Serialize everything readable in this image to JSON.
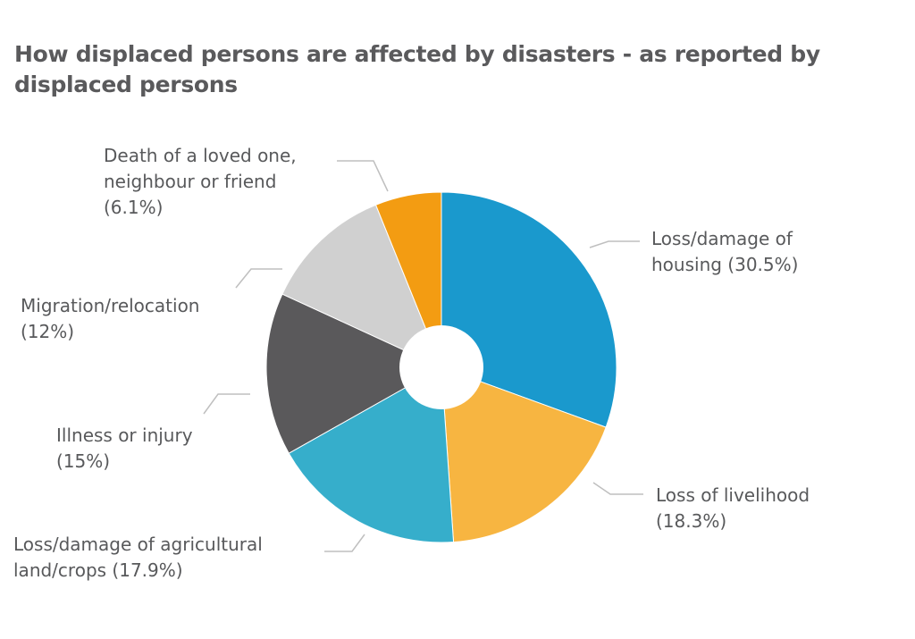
{
  "title": "How displaced persons are affected by disasters - as reported by displaced persons",
  "labels": {
    "housing": [
      "Loss/damage of",
      "housing (30.5%)"
    ],
    "livelihood": [
      "Loss of livelihood",
      "(18.3%)"
    ],
    "agricultural": [
      "Loss/damage of agricultural",
      "land/crops (17.9%)"
    ],
    "illness": [
      "Illness or injury",
      "(15%)"
    ],
    "migration": [
      "Migration/relocation",
      "(12%)"
    ],
    "death": [
      "Death of a loved one,",
      "neighbour or friend",
      "(6.1%)"
    ]
  },
  "chart_data": {
    "type": "pie",
    "title": "How displaced persons are affected by disasters - as reported by displaced persons",
    "donut": true,
    "slices": [
      {
        "label": "Loss/damage of housing",
        "value": 30.5,
        "color": "#1a99cd"
      },
      {
        "label": "Loss of livelihood",
        "value": 18.3,
        "color": "#f7b541"
      },
      {
        "label": "Loss/damage of agricultural land/crops",
        "value": 17.9,
        "color": "#36aecb"
      },
      {
        "label": "Illness or injury",
        "value": 15,
        "color": "#5a595b"
      },
      {
        "label": "Migration/relocation",
        "value": 12,
        "color": "#d0d0d0"
      },
      {
        "label": "Death of a loved one, neighbour or friend",
        "value": 6.1,
        "color": "#f39c12"
      }
    ],
    "leader_line_color": "#bfbfbf"
  }
}
